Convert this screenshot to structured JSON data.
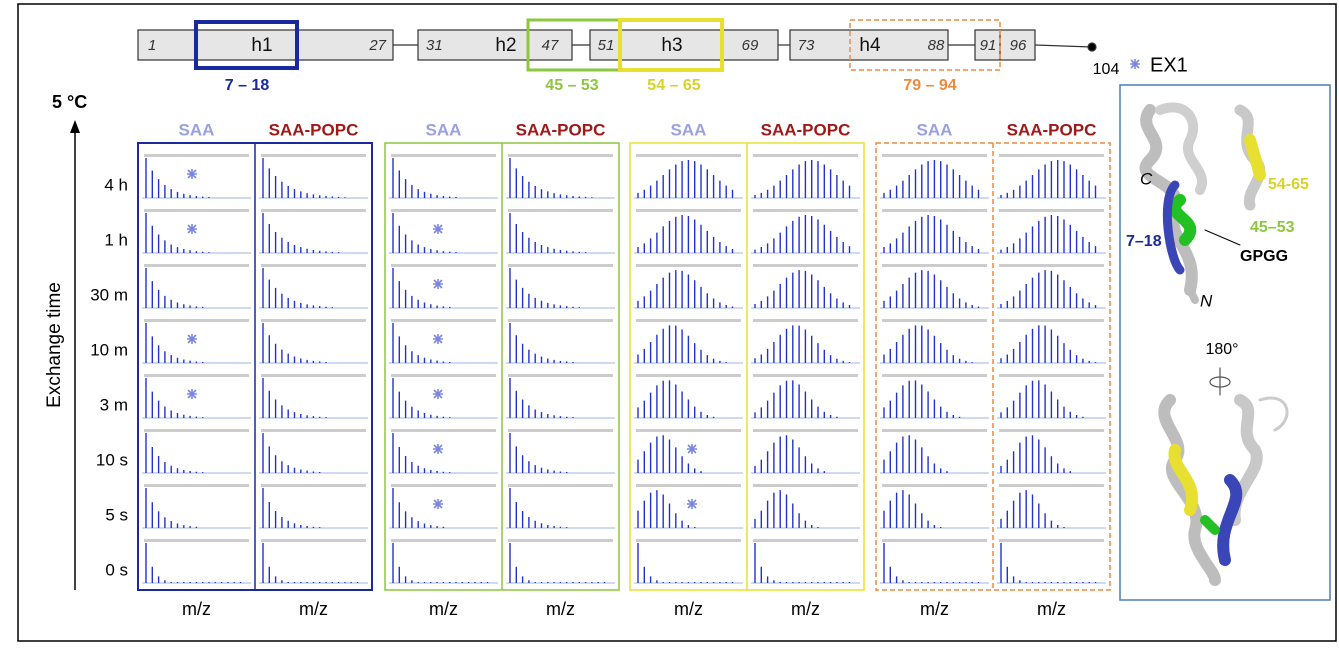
{
  "figure": {
    "domain_map": {
      "labels": [
        "1",
        "h1",
        "27",
        "31",
        "h2",
        "47",
        "51",
        "h3",
        "69",
        "73",
        "h4",
        "88",
        "91",
        "96"
      ],
      "end_label": "104"
    },
    "regions": [
      {
        "label": "7 – 18",
        "color": "#1a2a9c"
      },
      {
        "label": "45 – 53",
        "color": "#8dc63f"
      },
      {
        "label": "54 – 65",
        "color": "#d9d22a"
      },
      {
        "label": "79 – 94",
        "color": "#f08a3c"
      }
    ],
    "temperature": "5 °C",
    "y_axis_label": "Exchange time",
    "times": [
      "4 h",
      "1 h",
      "30 m",
      "10 m",
      "3 m",
      "10 s",
      "5 s",
      "0 s"
    ],
    "columns": [
      "SAA",
      "SAA-POPC",
      "SAA",
      "SAA-POPC",
      "SAA",
      "SAA-POPC",
      "SAA",
      "SAA-POPC"
    ],
    "x_axis_label": "m/z",
    "legend": {
      "label": "EX1"
    },
    "structure": {
      "c_terminus": "C",
      "n_terminus": "N",
      "label_54_65": "54-65",
      "label_45_53": "45–53",
      "label_7_18": "7–18",
      "motif": "GPGG",
      "rotation": "180°"
    }
  }
}
